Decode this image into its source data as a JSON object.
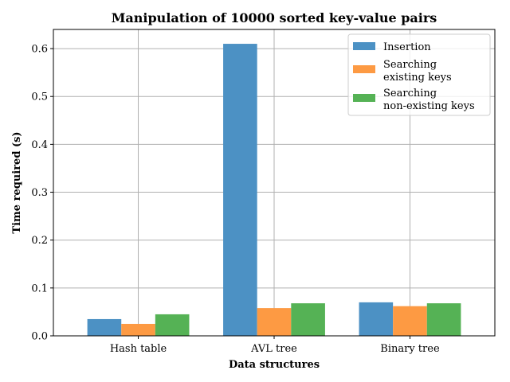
{
  "chart_data": {
    "type": "bar",
    "title": "Manipulation of 10000 sorted key-value pairs",
    "xlabel": "Data structures",
    "ylabel": "Time required (s)",
    "categories": [
      "Hash table",
      "AVL tree",
      "Binary tree"
    ],
    "ylim": [
      0,
      0.64
    ],
    "yticks": [
      "0.0",
      "0.1",
      "0.2",
      "0.3",
      "0.4",
      "0.5",
      "0.6"
    ],
    "grid": true,
    "legend_position": "top-right",
    "series": [
      {
        "name": [
          "Insertion"
        ],
        "color": "#4c91c4",
        "values": [
          0.035,
          0.61,
          0.07
        ]
      },
      {
        "name": [
          "Searching",
          " existing keys"
        ],
        "color": "#fd9a43",
        "values": [
          0.025,
          0.058,
          0.062
        ]
      },
      {
        "name": [
          "Searching",
          " non-existing keys"
        ],
        "color": "#55b255",
        "values": [
          0.045,
          0.068,
          0.068
        ]
      }
    ]
  }
}
